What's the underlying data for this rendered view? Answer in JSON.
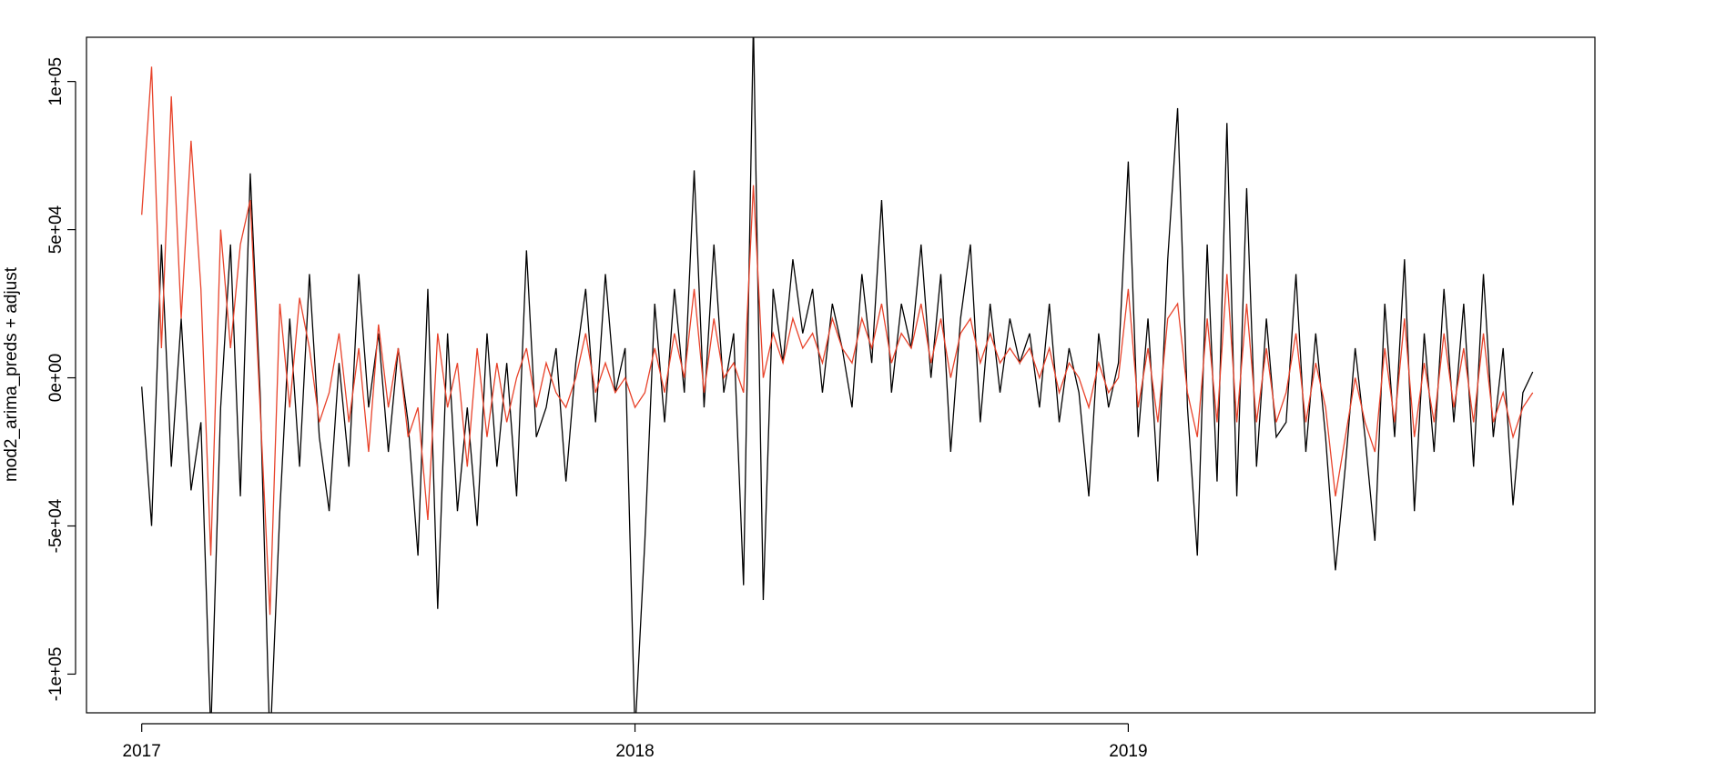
{
  "chart_data": {
    "type": "line",
    "ylabel": "mod2_arima_preds + adjust",
    "xlim": [
      2016.888,
      2019.946
    ],
    "ylim": [
      -113060,
      114925
    ],
    "xticks": [
      2017,
      2018,
      2019
    ],
    "yticks": [
      {
        "value": -100000,
        "label": "-1e+05"
      },
      {
        "value": -50000,
        "label": "-5e+04"
      },
      {
        "value": 0,
        "label": "0e+00"
      },
      {
        "value": 50000,
        "label": "5e+04"
      },
      {
        "value": 100000,
        "label": "1e+05"
      }
    ],
    "x": [
      2017,
      2017.02,
      2017.04,
      2017.06,
      2017.08,
      2017.1,
      2017.12,
      2017.14,
      2017.16,
      2017.18,
      2017.2,
      2017.22,
      2017.24,
      2017.26,
      2017.28,
      2017.3,
      2017.32,
      2017.34,
      2017.36,
      2017.38,
      2017.4,
      2017.42,
      2017.44,
      2017.46,
      2017.48,
      2017.5,
      2017.52,
      2017.54,
      2017.56,
      2017.58,
      2017.6,
      2017.62,
      2017.64,
      2017.66,
      2017.68,
      2017.7,
      2017.72,
      2017.74,
      2017.76,
      2017.78,
      2017.8,
      2017.82,
      2017.84,
      2017.86,
      2017.88,
      2017.9,
      2017.92,
      2017.94,
      2017.96,
      2017.98,
      2018,
      2018.02,
      2018.04,
      2018.06,
      2018.08,
      2018.1,
      2018.12,
      2018.14,
      2018.16,
      2018.18,
      2018.2,
      2018.22,
      2018.24,
      2018.26,
      2018.28,
      2018.3,
      2018.32,
      2018.34,
      2018.36,
      2018.38,
      2018.4,
      2018.42,
      2018.44,
      2018.46,
      2018.48,
      2018.5,
      2018.52,
      2018.54,
      2018.56,
      2018.58,
      2018.6,
      2018.62,
      2018.64,
      2018.66,
      2018.68,
      2018.7,
      2018.72,
      2018.74,
      2018.76,
      2018.78,
      2018.8,
      2018.82,
      2018.84,
      2018.86,
      2018.88,
      2018.9,
      2018.92,
      2018.94,
      2018.96,
      2018.98,
      2019,
      2019.02,
      2019.04,
      2019.06,
      2019.08,
      2019.1,
      2019.12,
      2019.14,
      2019.16,
      2019.18,
      2019.2,
      2019.22,
      2019.24,
      2019.26,
      2019.28,
      2019.3,
      2019.32,
      2019.34,
      2019.36,
      2019.38,
      2019.4,
      2019.42,
      2019.44,
      2019.46,
      2019.48,
      2019.5,
      2019.52,
      2019.54,
      2019.56,
      2019.58,
      2019.6,
      2019.62,
      2019.64,
      2019.66,
      2019.68,
      2019.7,
      2019.72,
      2019.74,
      2019.76,
      2019.78,
      2019.8,
      2019.82
    ],
    "series": [
      {
        "color": "#000000",
        "values": [
          -3000,
          -50000,
          45000,
          -30000,
          20000,
          -38000,
          -15000,
          -120000,
          -10000,
          45000,
          -40000,
          69000,
          -5000,
          -125000,
          -45000,
          20000,
          -30000,
          35000,
          -20000,
          -45000,
          5000,
          -30000,
          35000,
          -10000,
          15000,
          -25000,
          10000,
          -15000,
          -60000,
          30000,
          -78000,
          15000,
          -45000,
          -10000,
          -50000,
          15000,
          -30000,
          5000,
          -40000,
          43000,
          -20000,
          -10000,
          10000,
          -35000,
          5000,
          30000,
          -15000,
          35000,
          -5000,
          10000,
          -120000,
          -55000,
          25000,
          -15000,
          30000,
          -5000,
          70000,
          -10000,
          45000,
          -5000,
          15000,
          -70000,
          120000,
          -75000,
          30000,
          5000,
          40000,
          15000,
          30000,
          -5000,
          25000,
          10000,
          -10000,
          35000,
          5000,
          60000,
          -5000,
          25000,
          10000,
          45000,
          0,
          35000,
          -25000,
          20000,
          45000,
          -15000,
          25000,
          -5000,
          20000,
          5000,
          15000,
          -10000,
          25000,
          -15000,
          10000,
          -5000,
          -40000,
          15000,
          -10000,
          5000,
          73000,
          -20000,
          20000,
          -35000,
          40000,
          91000,
          -10000,
          -60000,
          45000,
          -35000,
          86000,
          -40000,
          64000,
          -30000,
          20000,
          -20000,
          -15000,
          35000,
          -25000,
          15000,
          -20000,
          -65000,
          -30000,
          10000,
          -20000,
          -55000,
          25000,
          -20000,
          40000,
          -45000,
          15000,
          -25000,
          30000,
          -15000,
          25000,
          -30000,
          35000,
          -20000,
          10000,
          -43000,
          -5000,
          2000
        ]
      },
      {
        "color": "#e8432b",
        "values": [
          55000,
          105000,
          10000,
          95000,
          20000,
          80000,
          30000,
          -60000,
          50000,
          10000,
          45000,
          60000,
          -10000,
          -80000,
          25000,
          -10000,
          27000,
          10000,
          -15000,
          -5000,
          15000,
          -15000,
          10000,
          -25000,
          18000,
          -10000,
          10000,
          -20000,
          -10000,
          -48000,
          15000,
          -10000,
          5000,
          -30000,
          10000,
          -20000,
          5000,
          -15000,
          0,
          10000,
          -10000,
          5000,
          -5000,
          -10000,
          0,
          15000,
          -5000,
          5000,
          -5000,
          0,
          -10000,
          -5000,
          10000,
          -5000,
          15000,
          0,
          30000,
          -5000,
          20000,
          0,
          5000,
          -5000,
          65000,
          0,
          15000,
          5000,
          20000,
          10000,
          15000,
          5000,
          20000,
          10000,
          5000,
          20000,
          10000,
          25000,
          5000,
          15000,
          10000,
          25000,
          5000,
          20000,
          0,
          15000,
          20000,
          5000,
          15000,
          5000,
          10000,
          5000,
          10000,
          0,
          10000,
          -5000,
          5000,
          0,
          -10000,
          5000,
          -5000,
          0,
          30000,
          -10000,
          10000,
          -15000,
          20000,
          25000,
          -5000,
          -20000,
          20000,
          -15000,
          35000,
          -15000,
          25000,
          -15000,
          10000,
          -15000,
          -5000,
          15000,
          -15000,
          5000,
          -10000,
          -40000,
          -20000,
          0,
          -15000,
          -25000,
          10000,
          -15000,
          20000,
          -20000,
          5000,
          -15000,
          15000,
          -10000,
          10000,
          -15000,
          15000,
          -15000,
          -5000,
          -20000,
          -10000,
          -5000
        ]
      }
    ]
  }
}
